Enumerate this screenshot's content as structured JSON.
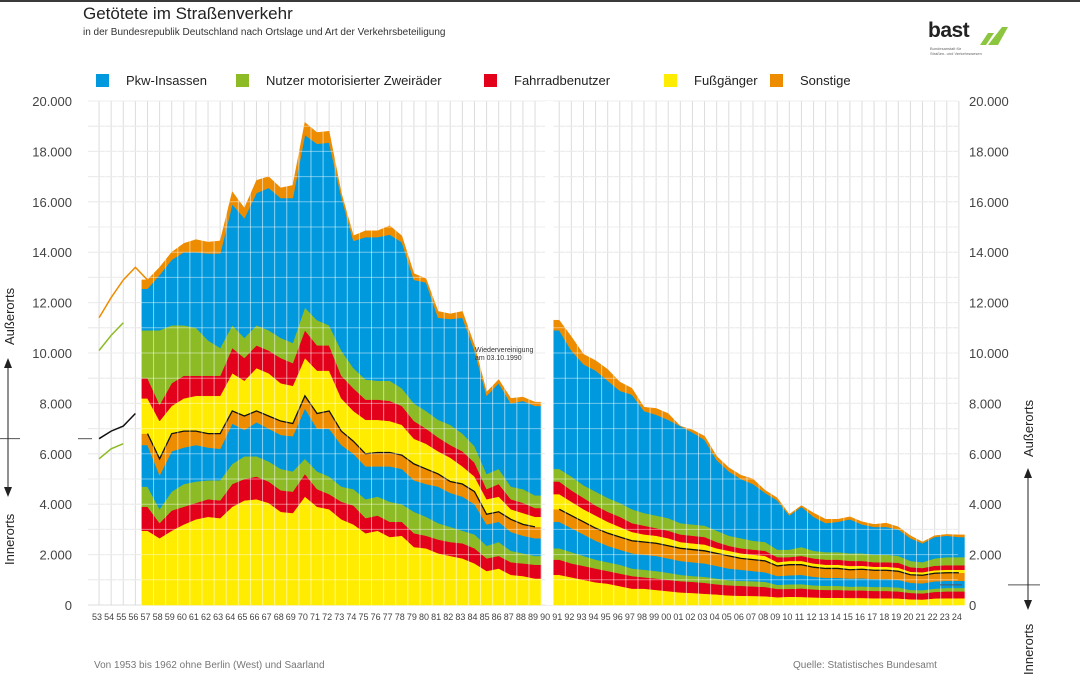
{
  "header": {
    "title": "Getötete im Straßenverkehr",
    "subtitle": "in der Bundesrepublik Deutschland nach Ortslage und Art der Verkehrsbeteiligung"
  },
  "logo": {
    "name": "bast",
    "subtitle_line1": "Bundesanstalt für",
    "subtitle_line2": "Straßen- und Verkehrswesen",
    "accent": "#8cc63f"
  },
  "footer": {
    "note": "Von 1953 bis 1962 ohne Berlin (West) und Saarland",
    "source": "Quelle: Statistisches Bundesamt"
  },
  "chart_data": {
    "type": "area",
    "title": "Getötete im Straßenverkehr",
    "subtitle": "in der Bundesrepublik Deutschland nach Ortslage und Art der Verkehrsbeteiligung",
    "stacking": "stacked; lower band = Innerorts, upper band = Außerorts, separated by a black line",
    "ylim": [
      0,
      20000
    ],
    "yticks": [
      "0",
      "2.000",
      "4.000",
      "6.000",
      "8.000",
      "10.000",
      "12.000",
      "14.000",
      "16.000",
      "18.000",
      "20.000"
    ],
    "ytick_values": [
      0,
      2000,
      4000,
      6000,
      8000,
      10000,
      12000,
      14000,
      16000,
      18000,
      20000
    ],
    "grid": true,
    "left_axis_labels": {
      "upper": "Außerorts",
      "lower": "Innerorts"
    },
    "right_axis_labels": {
      "upper": "Außerorts",
      "lower": "Innerorts"
    },
    "legend_position": "top",
    "legend": [
      {
        "key": "pkw",
        "label": "Pkw-Insassen",
        "color": "#0099dd"
      },
      {
        "key": "zweirad",
        "label": "Nutzer motorisierter Zweiräder",
        "color": "#8dbb25"
      },
      {
        "key": "rad",
        "label": "Fahrradbenutzer",
        "color": "#e2001a"
      },
      {
        "key": "fuss",
        "label": "Fußgänger",
        "color": "#ffec00"
      },
      {
        "key": "sonst",
        "label": "Sonstige",
        "color": "#ee8c00"
      }
    ],
    "annotation": {
      "text_line1": "Wiedervereinigung",
      "text_line2": "am 03.10.1990",
      "year": 1990
    },
    "x_labels": [
      "53",
      "54",
      "55",
      "56",
      "57",
      "58",
      "59",
      "60",
      "61",
      "62",
      "63",
      "64",
      "65",
      "66",
      "67",
      "68",
      "69",
      "70",
      "71",
      "72",
      "73",
      "74",
      "75",
      "76",
      "77",
      "78",
      "79",
      "80",
      "81",
      "82",
      "83",
      "84",
      "85",
      "86",
      "87",
      "88",
      "89",
      "90",
      "91",
      "92",
      "93",
      "94",
      "95",
      "96",
      "97",
      "98",
      "99",
      "00",
      "01",
      "02",
      "03",
      "04",
      "05",
      "06",
      "07",
      "08",
      "09",
      "10",
      "11",
      "12",
      "13",
      "14",
      "15",
      "16",
      "17",
      "18",
      "19",
      "20",
      "21",
      "22",
      "23",
      "24"
    ],
    "gap_year": 1990,
    "partial_years_note": "1953–1956: only totals/partial categories shown as outline lines",
    "outline_lines": {
      "total_outer_top": {
        "years": [
          1953,
          1954,
          1955,
          1956,
          1957
        ],
        "values": [
          11400,
          12200,
          12900,
          13400,
          12900
        ]
      },
      "outer_zweirad_top": {
        "years": [
          1953,
          1954,
          1955
        ],
        "values": [
          10100,
          10700,
          11200
        ]
      },
      "inner_total": {
        "years": [
          1953,
          1954,
          1955,
          1956
        ],
        "values": [
          6600,
          6900,
          7100,
          7600
        ]
      },
      "inner_zweirad_top": {
        "years": [
          1953,
          1954,
          1955
        ],
        "values": [
          5800,
          6200,
          6400
        ]
      }
    },
    "years": [
      1957,
      1958,
      1959,
      1960,
      1961,
      1962,
      1963,
      1964,
      1965,
      1966,
      1967,
      1968,
      1969,
      1970,
      1971,
      1972,
      1973,
      1974,
      1975,
      1976,
      1977,
      1978,
      1979,
      1980,
      1981,
      1982,
      1983,
      1984,
      1985,
      1986,
      1987,
      1988,
      1989,
      1991,
      1992,
      1993,
      1994,
      1995,
      1996,
      1997,
      1998,
      1999,
      2000,
      2001,
      2002,
      2003,
      2004,
      2005,
      2006,
      2007,
      2008,
      2009,
      2010,
      2011,
      2012,
      2013,
      2014,
      2015,
      2016,
      2017,
      2018,
      2019,
      2020,
      2021,
      2022,
      2023,
      2024
    ],
    "cumulative_boundaries": {
      "description": "Cumulative stack tops in persons killed, bottom to top: inner_fuss, inner_rad, inner_zweirad, inner_pkw, inner_sonst (= Innerorts total, black line), outer_fuss, outer_rad, outer_zweirad, outer_pkw, outer_sonst (= overall total)",
      "inner_fuss": [
        2950,
        2650,
        2950,
        3200,
        3400,
        3500,
        3450,
        3900,
        4150,
        4200,
        4050,
        3700,
        3650,
        4300,
        3900,
        3800,
        3400,
        3200,
        2850,
        2950,
        2700,
        2750,
        2300,
        2250,
        2050,
        1950,
        1850,
        1650,
        1350,
        1450,
        1200,
        1150,
        1050,
        1200,
        1100,
        1000,
        900,
        850,
        750,
        650,
        650,
        600,
        550,
        500,
        480,
        450,
        420,
        380,
        370,
        360,
        350,
        310,
        330,
        320,
        300,
        290,
        290,
        280,
        280,
        270,
        270,
        260,
        230,
        220,
        260,
        270,
        270
      ],
      "inner_rad": [
        3900,
        3250,
        3750,
        3900,
        4050,
        4200,
        4150,
        4800,
        5000,
        5100,
        4900,
        4550,
        4500,
        5200,
        4600,
        4400,
        4100,
        3950,
        3450,
        3550,
        3300,
        3300,
        2850,
        2750,
        2600,
        2500,
        2450,
        2250,
        1850,
        1950,
        1700,
        1650,
        1600,
        1800,
        1650,
        1550,
        1450,
        1350,
        1250,
        1150,
        1100,
        1050,
        1000,
        950,
        920,
        880,
        820,
        780,
        760,
        740,
        720,
        640,
        640,
        660,
        620,
        600,
        600,
        580,
        580,
        560,
        560,
        540,
        480,
        460,
        520,
        540,
        540
      ],
      "inner_zweirad": [
        4700,
        3800,
        4500,
        4800,
        4900,
        4950,
        4950,
        5600,
        5900,
        5900,
        5700,
        5400,
        5300,
        5800,
        5300,
        5100,
        4700,
        4600,
        4200,
        4300,
        4100,
        4000,
        3700,
        3500,
        3250,
        3100,
        2950,
        2800,
        2350,
        2500,
        2150,
        2050,
        1950,
        2250,
        2100,
        1950,
        1800,
        1700,
        1600,
        1450,
        1400,
        1350,
        1280,
        1200,
        1150,
        1120,
        1050,
        980,
        960,
        950,
        920,
        800,
        820,
        830,
        780,
        760,
        760,
        730,
        740,
        720,
        720,
        700,
        600,
        590,
        650,
        680,
        680
      ],
      "inner_pkw": [
        6350,
        5150,
        6100,
        6250,
        6350,
        6250,
        6200,
        7200,
        6950,
        7250,
        7000,
        6750,
        6700,
        7800,
        7000,
        7000,
        6350,
        6000,
        5500,
        5500,
        5500,
        5400,
        4950,
        4800,
        4700,
        4450,
        4300,
        4000,
        3200,
        3300,
        2900,
        2750,
        2650,
        3300,
        3050,
        2800,
        2550,
        2350,
        2200,
        2050,
        2000,
        1950,
        1850,
        1750,
        1700,
        1650,
        1550,
        1450,
        1400,
        1350,
        1300,
        1150,
        1180,
        1200,
        1120,
        1080,
        1080,
        1050,
        1060,
        1030,
        1030,
        1000,
        880,
        860,
        940,
        960,
        960
      ],
      "inner_sonst": [
        6800,
        5800,
        6800,
        6900,
        6900,
        6800,
        6800,
        7700,
        7500,
        7700,
        7500,
        7300,
        7200,
        8300,
        7600,
        7700,
        6900,
        6500,
        6000,
        6050,
        6050,
        5950,
        5600,
        5400,
        5200,
        4900,
        4800,
        4500,
        3600,
        3700,
        3400,
        3200,
        3100,
        3800,
        3550,
        3300,
        3050,
        2850,
        2700,
        2550,
        2500,
        2450,
        2350,
        2250,
        2200,
        2150,
        2050,
        1950,
        1850,
        1800,
        1750,
        1550,
        1600,
        1600,
        1500,
        1450,
        1450,
        1400,
        1420,
        1380,
        1380,
        1340,
        1200,
        1180,
        1260,
        1280,
        1280
      ],
      "outer_fuss": [
        8200,
        7300,
        7900,
        8200,
        8300,
        8300,
        8300,
        9200,
        8900,
        9400,
        9200,
        8800,
        8700,
        9800,
        9300,
        9300,
        8200,
        7700,
        7350,
        7350,
        7300,
        7150,
        6600,
        6400,
        6100,
        5850,
        5500,
        5100,
        4200,
        4300,
        3800,
        3650,
        3500,
        4400,
        4100,
        3800,
        3550,
        3300,
        3100,
        2900,
        2800,
        2750,
        2650,
        2500,
        2450,
        2400,
        2250,
        2150,
        2050,
        2000,
        1950,
        1700,
        1750,
        1750,
        1650,
        1600,
        1600,
        1550,
        1560,
        1520,
        1520,
        1480,
        1320,
        1300,
        1380,
        1400,
        1400
      ],
      "outer_rad": [
        9000,
        7950,
        8800,
        9100,
        9100,
        9100,
        9100,
        10200,
        9800,
        10300,
        10100,
        9800,
        9600,
        10900,
        10300,
        10300,
        9100,
        8600,
        8150,
        8150,
        8100,
        7900,
        7300,
        7000,
        6650,
        6350,
        6100,
        5650,
        4600,
        4800,
        4200,
        4050,
        3850,
        4900,
        4550,
        4250,
        3950,
        3700,
        3500,
        3250,
        3150,
        3050,
        2950,
        2800,
        2750,
        2700,
        2500,
        2350,
        2250,
        2200,
        2150,
        1900,
        1900,
        1950,
        1850,
        1800,
        1800,
        1750,
        1750,
        1700,
        1700,
        1680,
        1500,
        1470,
        1560,
        1580,
        1580
      ],
      "outer_zweirad": [
        10900,
        10900,
        11100,
        11100,
        11000,
        10500,
        10200,
        11100,
        10600,
        11100,
        10900,
        10600,
        10400,
        11800,
        11300,
        11100,
        10100,
        9400,
        8950,
        8900,
        8900,
        8600,
        8000,
        7700,
        7350,
        7150,
        6800,
        6300,
        5200,
        5400,
        4700,
        4600,
        4350,
        5400,
        5100,
        4750,
        4500,
        4250,
        4050,
        3800,
        3650,
        3550,
        3450,
        3250,
        3200,
        3150,
        2950,
        2750,
        2650,
        2550,
        2500,
        2200,
        2200,
        2300,
        2150,
        2100,
        2100,
        2050,
        2050,
        2000,
        2000,
        1950,
        1750,
        1700,
        1850,
        1900,
        1900
      ],
      "outer_pkw": [
        12550,
        13100,
        13700,
        14000,
        14000,
        13950,
        13950,
        15900,
        15350,
        16350,
        16550,
        16150,
        16150,
        18650,
        18300,
        18350,
        16200,
        14450,
        14600,
        14600,
        14700,
        14400,
        12900,
        12800,
        11400,
        11350,
        11400,
        10100,
        8300,
        8800,
        8000,
        8100,
        7900,
        10900,
        10100,
        9550,
        9300,
        8900,
        8500,
        8350,
        7700,
        7550,
        7350,
        7100,
        6850,
        6550,
        5750,
        5300,
        5000,
        4800,
        4450,
        4150,
        3550,
        3900,
        3500,
        3250,
        3300,
        3400,
        3200,
        3100,
        3100,
        3000,
        2650,
        2450,
        2700,
        2750,
        2700
      ],
      "outer_sonst": [
        12900,
        13400,
        14000,
        14350,
        14500,
        14400,
        14450,
        16400,
        15750,
        16850,
        17000,
        16550,
        16650,
        19150,
        18750,
        18800,
        16350,
        14650,
        14850,
        14850,
        15050,
        14650,
        13150,
        12950,
        11650,
        11550,
        11650,
        10300,
        8450,
        8950,
        8200,
        8250,
        8050,
        11300,
        10650,
        9950,
        9700,
        9350,
        8850,
        8600,
        7850,
        7800,
        7600,
        7100,
        6950,
        6700,
        5900,
        5450,
        5150,
        5000,
        4550,
        4250,
        3600,
        3950,
        3650,
        3400,
        3400,
        3500,
        3300,
        3200,
        3250,
        3100,
        2750,
        2500,
        2750,
        2800,
        2780
      ]
    }
  }
}
